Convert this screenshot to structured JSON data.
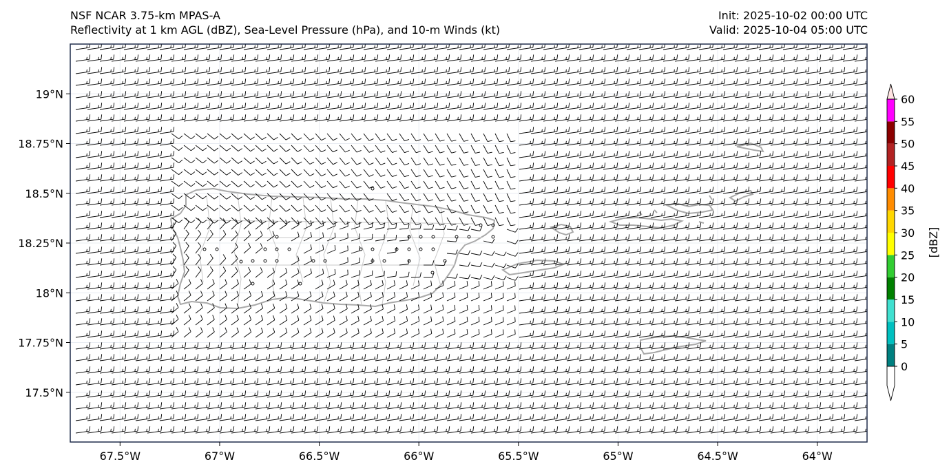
{
  "title": {
    "line1": "NSF NCAR 3.75-km MPAS-A",
    "line2": "Reflectivity at 1 km AGL (dBZ), Sea-Level Pressure (hPa), and 10-m Winds (kt)",
    "init": "Init: 2025-10-02 00:00 UTC",
    "valid": "Valid: 2025-10-04 05:00 UTC"
  },
  "map": {
    "extent": {
      "lon_min": -67.75,
      "lon_max": -63.75,
      "lat_min": 17.25,
      "lat_max": 19.25
    },
    "lon_ticks": [
      {
        "value": -67.5,
        "label": "67.5°W"
      },
      {
        "value": -67.0,
        "label": "67°W"
      },
      {
        "value": -66.5,
        "label": "66.5°W"
      },
      {
        "value": -66.0,
        "label": "66°W"
      },
      {
        "value": -65.5,
        "label": "65.5°W"
      },
      {
        "value": -65.0,
        "label": "65°W"
      },
      {
        "value": -64.5,
        "label": "64.5°W"
      },
      {
        "value": -64.0,
        "label": "64°W"
      }
    ],
    "lat_ticks": [
      {
        "value": 19.0,
        "label": "19°N"
      },
      {
        "value": 18.75,
        "label": "18.75°N"
      },
      {
        "value": 18.5,
        "label": "18.5°N"
      },
      {
        "value": 18.25,
        "label": "18.25°N"
      },
      {
        "value": 18.0,
        "label": "18°N"
      },
      {
        "value": 17.75,
        "label": "17.75°N"
      },
      {
        "value": 17.5,
        "label": "17.5°N"
      }
    ],
    "colors": {
      "frame": "#1f2b4a",
      "coast": "#a9a9a9",
      "barb": "#000000",
      "grid": "#e8ecf2"
    }
  },
  "colorbar": {
    "label": "[dBZ]",
    "levels": [
      0,
      5,
      10,
      15,
      20,
      25,
      30,
      35,
      40,
      45,
      50,
      55,
      60
    ],
    "tick_labels": [
      "0",
      "5",
      "10",
      "15",
      "20",
      "25",
      "30",
      "35",
      "40",
      "45",
      "50",
      "55",
      "60"
    ],
    "colors": [
      "#008080",
      "#00c0c0",
      "#40e0d0",
      "#008000",
      "#32cd32",
      "#ffff00",
      "#ffd700",
      "#ff8c00",
      "#ff0000",
      "#b22222",
      "#8b0000",
      "#ff00ff"
    ],
    "extend_low_color": "#ffffff",
    "extend_high_color": "#ffe4e1"
  }
}
